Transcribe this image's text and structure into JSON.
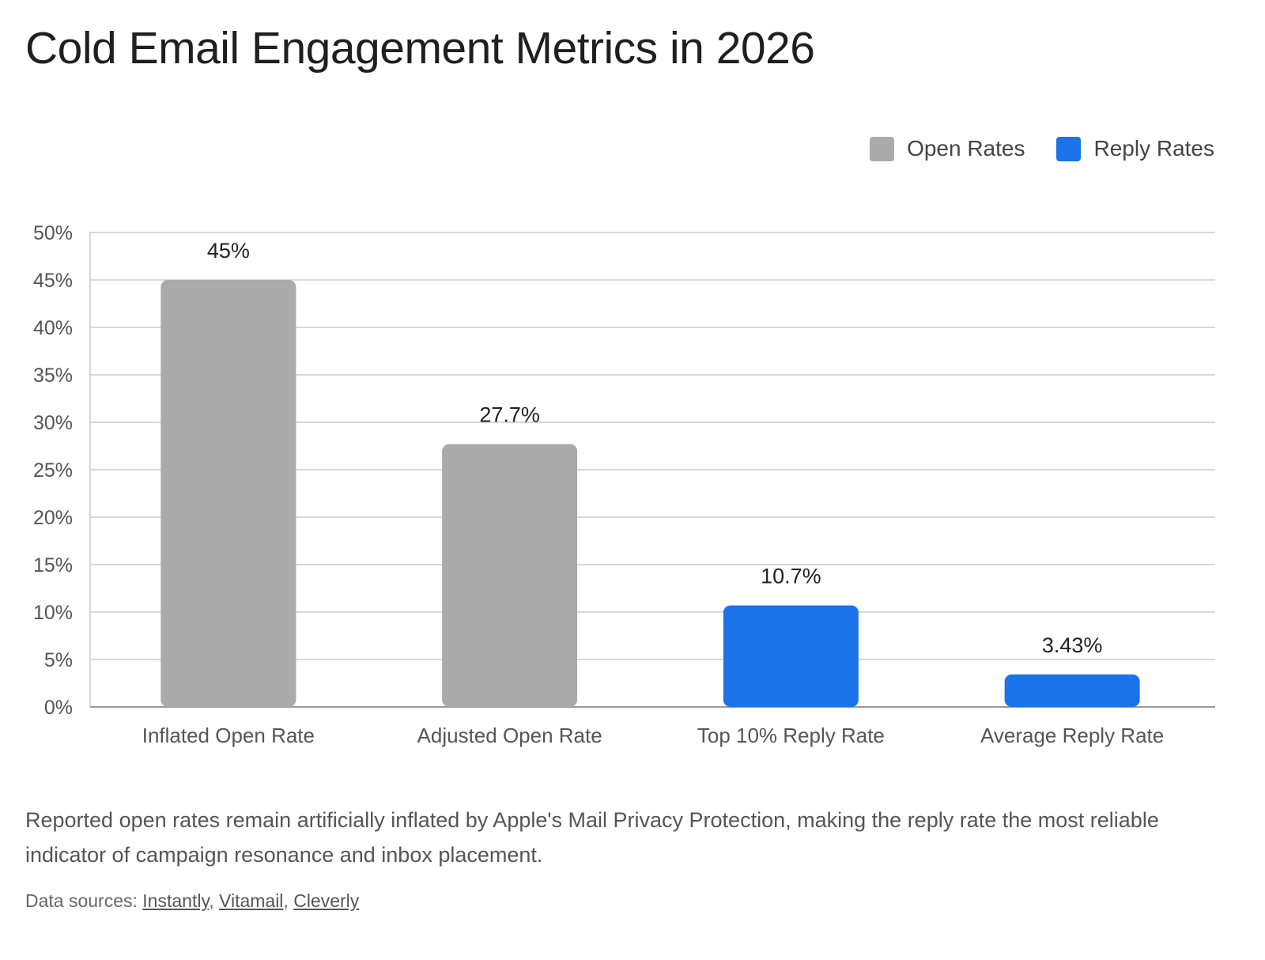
{
  "title": "Cold Email Engagement Metrics in 2026",
  "legend": [
    {
      "label": "Open Rates",
      "color": "#aaaaaa"
    },
    {
      "label": "Reply Rates",
      "color": "#1a73e8"
    }
  ],
  "caption": "Reported open rates remain artificially inflated by Apple's Mail Privacy Protection, making the reply rate the most reliable indicator of campaign resonance and inbox placement.",
  "sources": {
    "prefix": "Data sources: ",
    "links": [
      "Instantly",
      "Vitamail",
      "Cleverly"
    ],
    "separator": ", "
  },
  "chart_data": {
    "type": "bar",
    "title": "Cold Email Engagement Metrics in 2026",
    "xlabel": "",
    "ylabel": "",
    "ylim": [
      0,
      50
    ],
    "yticks": [
      0,
      5,
      10,
      15,
      20,
      25,
      30,
      35,
      40,
      45,
      50
    ],
    "ytick_suffix": "%",
    "grid": true,
    "legend_position": "top-right",
    "categories": [
      "Inflated Open Rate",
      "Adjusted Open Rate",
      "Top 10% Reply Rate",
      "Average Reply Rate"
    ],
    "values": [
      45,
      27.7,
      10.7,
      3.43
    ],
    "data_labels": [
      "45%",
      "27.7%",
      "10.7%",
      "3.43%"
    ],
    "bar_series": [
      "Open Rates",
      "Open Rates",
      "Reply Rates",
      "Reply Rates"
    ]
  }
}
